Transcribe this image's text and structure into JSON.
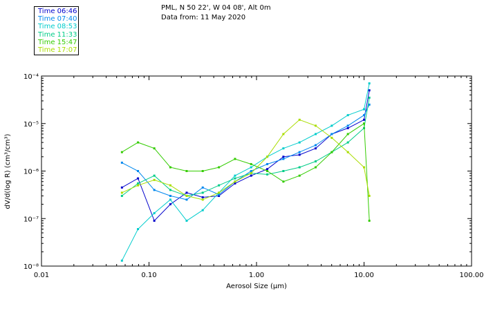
{
  "header": {
    "line1": "PML, N 50 22', W 04 08', Alt 0m",
    "line2": "Data from: 11 May 2020"
  },
  "chart_data": {
    "type": "line",
    "title": "PML, N 50 22', W 04 08', Alt 0m",
    "subtitle": "Data from: 11 May 2020",
    "xlabel": "Aerosol Size (μm)",
    "ylabel": "dV/d(log R) (cm³/cm³)",
    "xscale": "log",
    "yscale": "log",
    "xlim": [
      0.01,
      100
    ],
    "ylim": [
      1e-08,
      0.0001
    ],
    "x_ticks": [
      {
        "value": 0.01,
        "label": "0.01"
      },
      {
        "value": 0.1,
        "label": "0.10"
      },
      {
        "value": 1,
        "label": "1.00"
      },
      {
        "value": 10,
        "label": "10.00"
      },
      {
        "value": 100,
        "label": "100.00"
      }
    ],
    "y_ticks": [
      {
        "value": 1e-08,
        "label": "10⁻⁸"
      },
      {
        "value": 1e-07,
        "label": "10⁻⁷"
      },
      {
        "value": 1e-06,
        "label": "10⁻⁶"
      },
      {
        "value": 1e-05,
        "label": "10⁻⁵"
      },
      {
        "value": 0.0001,
        "label": "10⁻⁴"
      }
    ],
    "legend_position": "top-left",
    "x": [
      0.056,
      0.079,
      0.112,
      0.158,
      0.224,
      0.316,
      0.447,
      0.631,
      0.891,
      1.259,
      1.778,
      2.512,
      3.548,
      5.012,
      7.079,
      10.0,
      11.2
    ],
    "series": [
      {
        "name": "Time 06:46",
        "color": "#0000cc",
        "values": [
          4.5e-07,
          7e-07,
          9e-08,
          2e-07,
          3.5e-07,
          2.8e-07,
          3e-07,
          5.5e-07,
          8e-07,
          1.1e-06,
          2e-06,
          2.2e-06,
          3e-06,
          6e-06,
          8e-06,
          1.2e-05,
          5e-05
        ]
      },
      {
        "name": "Time 07:40",
        "color": "#0088ee",
        "values": [
          1.5e-06,
          1e-06,
          4e-07,
          3e-07,
          2.5e-07,
          4.5e-07,
          3.2e-07,
          6e-07,
          1e-06,
          1.4e-06,
          1.8e-06,
          2.5e-06,
          3.5e-06,
          6e-06,
          9e-06,
          1.5e-05,
          2.5e-05
        ]
      },
      {
        "name": "Time 08:53",
        "color": "#00cccc",
        "values": [
          1.3e-08,
          6e-08,
          1.3e-07,
          2.5e-07,
          9e-08,
          1.5e-07,
          3.5e-07,
          8e-07,
          1.2e-06,
          2e-06,
          3e-06,
          4e-06,
          6e-06,
          9e-06,
          1.5e-05,
          2e-05,
          7e-05
        ]
      },
      {
        "name": "Time 11:33",
        "color": "#00cc88",
        "values": [
          3e-07,
          5.5e-07,
          8e-07,
          4e-07,
          3e-07,
          3.5e-07,
          5e-07,
          7e-07,
          9e-07,
          8.5e-07,
          1e-06,
          1.2e-06,
          1.6e-06,
          2.5e-06,
          4e-06,
          8e-06,
          3.5e-05
        ]
      },
      {
        "name": "Time 15:47",
        "color": "#33cc00",
        "values": [
          2.5e-06,
          4e-06,
          3e-06,
          1.2e-06,
          1e-06,
          1e-06,
          1.2e-06,
          1.8e-06,
          1.4e-06,
          1e-06,
          6e-07,
          8e-07,
          1.2e-06,
          2.5e-06,
          6e-06,
          1e-05,
          9e-08
        ]
      },
      {
        "name": "Time 17:07",
        "color": "#aadd00",
        "values": [
          3.5e-07,
          5e-07,
          6.5e-07,
          5e-07,
          3e-07,
          2.5e-07,
          3.5e-07,
          6e-07,
          9e-07,
          2e-06,
          6e-06,
          1.2e-05,
          9e-06,
          5e-06,
          2.5e-06,
          1.2e-06,
          3e-07
        ]
      }
    ]
  }
}
